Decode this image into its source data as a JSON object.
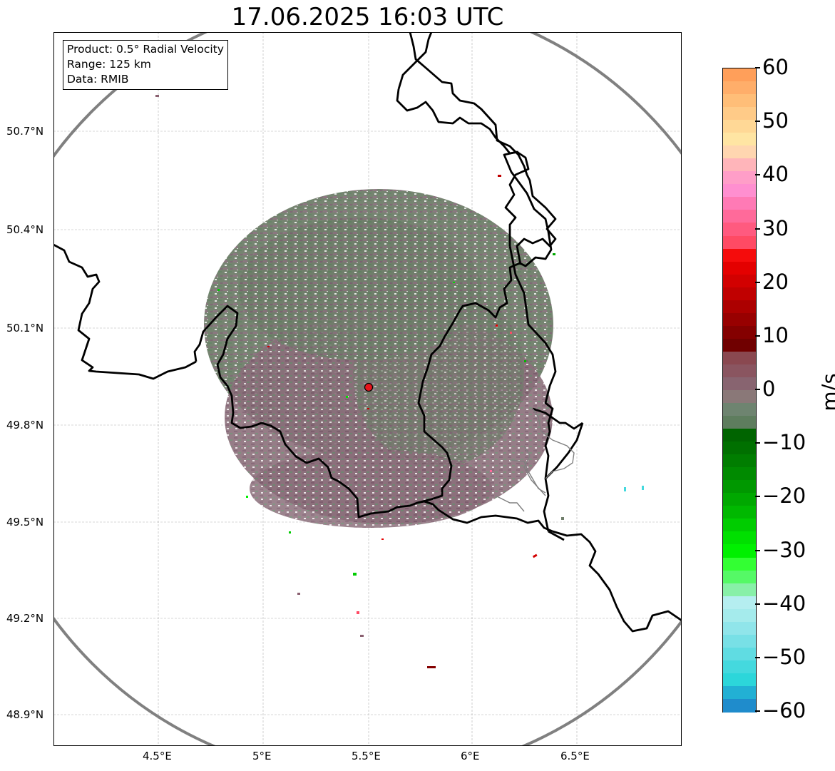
{
  "title": "17.06.2025 16:03 UTC",
  "info": {
    "product": "Product: 0.5° Radial Velocity",
    "range": "Range: 125 km",
    "data": "Data: RMIB"
  },
  "map": {
    "lat_labels": [
      "50.7°N",
      "50.4°N",
      "50.1°N",
      "49.8°N",
      "49.5°N",
      "49.2°N",
      "48.9°N"
    ],
    "lat_values": [
      50.7,
      50.4,
      50.1,
      49.8,
      49.5,
      49.2,
      48.9
    ],
    "lon_labels": [
      "4.5°E",
      "5°E",
      "5.5°E",
      "6°E",
      "6.5°E"
    ],
    "lon_values": [
      4.5,
      5.0,
      5.5,
      6.0,
      6.5
    ],
    "radar_site": {
      "lat": 49.915,
      "lon": 5.505
    },
    "range_ring_color": "#808080",
    "border_color": "#000000",
    "radar_marker_color": "#e8141c",
    "velocity_dominant_colors": [
      "#637d63",
      "#8a6e7a",
      "#7c5a6c"
    ]
  },
  "colorbar": {
    "unit": "m/s",
    "vmin": -60,
    "vmax": 60,
    "tick_labels": [
      "60",
      "50",
      "40",
      "30",
      "20",
      "10",
      "0",
      "−10",
      "−20",
      "−30",
      "−40",
      "−50",
      "−60"
    ],
    "tick_values": [
      60,
      50,
      40,
      30,
      20,
      10,
      0,
      -10,
      -20,
      -30,
      -40,
      -50,
      -60
    ],
    "colors_top_to_bottom": [
      "#ff9f5a",
      "#ffae6a",
      "#ffbe78",
      "#ffcb88",
      "#ffd896",
      "#ffe5a3",
      "#ffd6b0",
      "#ffb5ba",
      "#ff9ec8",
      "#ff8fd0",
      "#ff7ab5",
      "#ff6a9a",
      "#ff5a7f",
      "#ff4a64",
      "#f50c0c",
      "#e40000",
      "#d20000",
      "#c00000",
      "#ac0000",
      "#980000",
      "#840000",
      "#700000",
      "#8a4850",
      "#8a5560",
      "#886470",
      "#8a7878",
      "#6e8470",
      "#5e7d5e",
      "#006400",
      "#007000",
      "#007d00",
      "#008a00",
      "#009800",
      "#00a800",
      "#00b800",
      "#00cc00",
      "#00e000",
      "#00f000",
      "#33ff33",
      "#55f966",
      "#88f0a8",
      "#b5eef0",
      "#a5ebec",
      "#90e5ea",
      "#78e0e6",
      "#60dce2",
      "#44d9de",
      "#2cd6da",
      "#22b0d4",
      "#1f8ccc"
    ]
  }
}
